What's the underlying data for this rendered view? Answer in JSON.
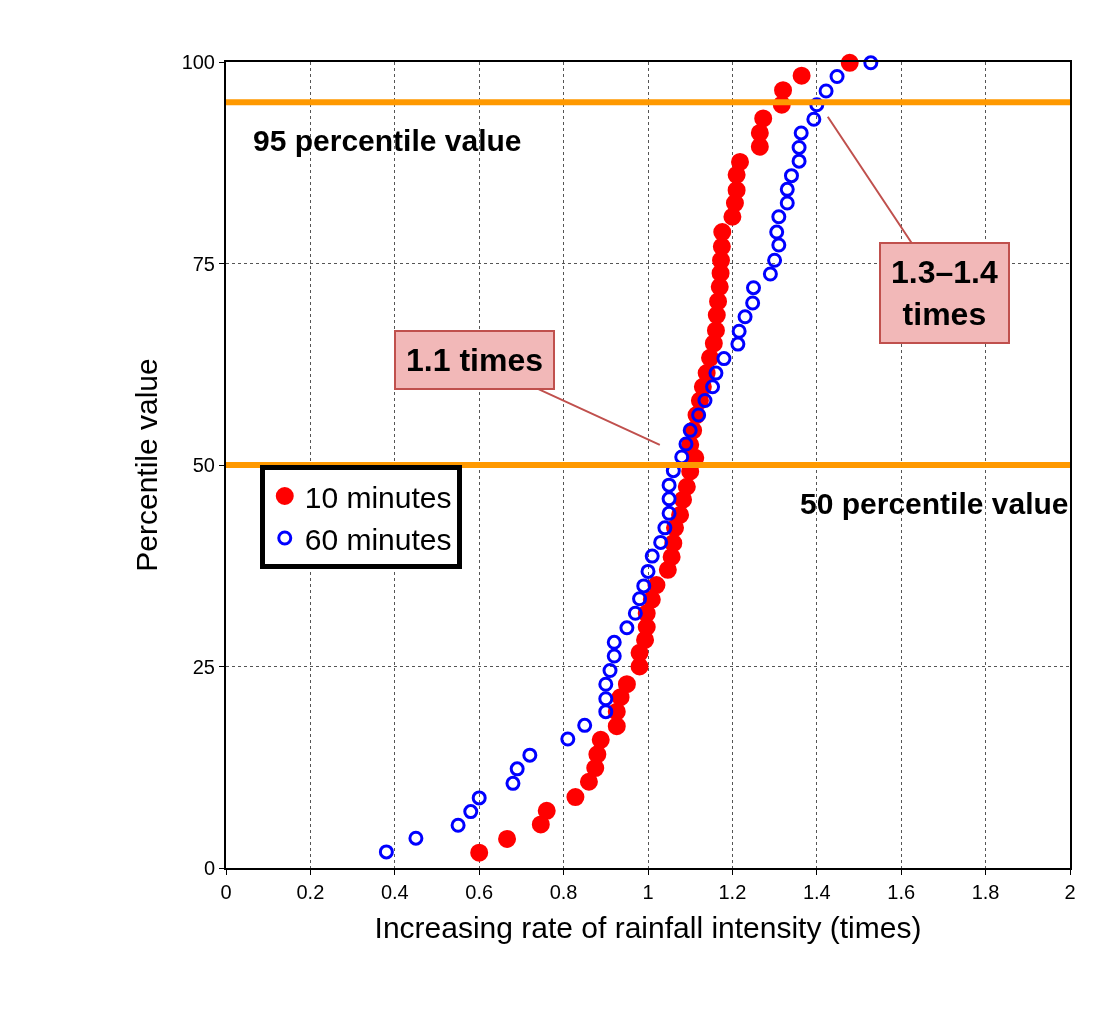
{
  "chart_data": {
    "type": "scatter",
    "xlabel": "Increasing rate of rainfall intensity (times)",
    "ylabel": "Percentile value",
    "xlim": [
      0,
      2
    ],
    "xticks": [
      0,
      0.2,
      0.4,
      0.6,
      0.8,
      1,
      1.2,
      1.4,
      1.6,
      1.8,
      2
    ],
    "ylim": [
      0,
      100
    ],
    "yticks": [
      0,
      25,
      50,
      75,
      100
    ],
    "grid": true,
    "legend": "left",
    "series": [
      {
        "name": "10 minutes",
        "color": "#ff0000",
        "marker": "circle",
        "x": [
          0.6,
          0.666,
          0.746,
          0.76,
          0.828,
          0.86,
          0.875,
          0.88,
          0.888,
          0.926,
          0.926,
          0.935,
          0.95,
          0.98,
          0.98,
          0.993,
          0.997,
          0.997,
          1.009,
          1.02,
          1.047,
          1.056,
          1.06,
          1.064,
          1.076,
          1.083,
          1.092,
          1.1,
          1.112,
          1.1,
          1.107,
          1.115,
          1.123,
          1.13,
          1.139,
          1.147,
          1.156,
          1.161,
          1.163,
          1.166,
          1.17,
          1.172,
          1.173,
          1.175,
          1.176,
          1.2,
          1.206,
          1.21,
          1.21,
          1.218,
          1.265,
          1.265,
          1.273,
          1.317,
          1.32,
          1.364,
          1.478
        ],
        "values": [
          1.9,
          3.6,
          5.4,
          7.1,
          8.8,
          10.7,
          12.4,
          14.1,
          15.9,
          17.6,
          19.4,
          21.2,
          22.8,
          25,
          26.7,
          28.3,
          29.9,
          31.6,
          33.3,
          35.1,
          37,
          38.6,
          40.3,
          42.2,
          43.8,
          45.7,
          47.3,
          49.2,
          50.9,
          52.5,
          54.3,
          56.2,
          58,
          59.7,
          61.4,
          63.3,
          65.1,
          66.7,
          68.6,
          70.3,
          72.1,
          73.8,
          75.4,
          77.1,
          78.9,
          80.8,
          82.5,
          84.1,
          86,
          87.6,
          89.5,
          91.2,
          93,
          94.7,
          96.5,
          98.3,
          99.9
        ]
      },
      {
        "name": "60 minutes",
        "color": "#0000ff",
        "marker": "circle-open",
        "x": [
          0.38,
          0.45,
          0.55,
          0.58,
          0.6,
          0.68,
          0.69,
          0.72,
          0.81,
          0.85,
          0.9,
          0.9,
          0.9,
          0.91,
          0.92,
          0.92,
          0.95,
          0.97,
          0.98,
          0.99,
          1.0,
          1.01,
          1.03,
          1.04,
          1.05,
          1.05,
          1.05,
          1.06,
          1.08,
          1.09,
          1.1,
          1.12,
          1.135,
          1.153,
          1.161,
          1.18,
          1.213,
          1.216,
          1.23,
          1.248,
          1.25,
          1.29,
          1.3,
          1.31,
          1.305,
          1.31,
          1.33,
          1.33,
          1.34,
          1.358,
          1.358,
          1.363,
          1.393,
          1.4,
          1.422,
          1.448,
          1.528
        ],
        "values": [
          2,
          3.7,
          5.3,
          7,
          8.7,
          10.5,
          12.3,
          14,
          16,
          17.7,
          19.4,
          21,
          22.8,
          24.5,
          26.3,
          28,
          29.8,
          31.6,
          33.4,
          35,
          36.8,
          38.7,
          40.4,
          42.2,
          44,
          45.8,
          47.5,
          49.3,
          51,
          52.6,
          54.3,
          56.2,
          58,
          59.7,
          61.4,
          63.2,
          65,
          66.6,
          68.4,
          70.1,
          72,
          73.7,
          75.4,
          77.3,
          78.9,
          80.8,
          82.5,
          84.2,
          85.9,
          87.7,
          89.4,
          91.2,
          92.9,
          94.7,
          96.4,
          98.2,
          99.9
        ]
      }
    ],
    "ref_lines": [
      {
        "axis": "y",
        "value": 95,
        "label": "95 percentile value",
        "color": "#ff9900"
      },
      {
        "axis": "y",
        "value": 50,
        "label": "50 percentile value",
        "color": "#ff9900"
      }
    ],
    "annotations": [
      "1.1 times",
      "1.3–1.4 times"
    ]
  }
}
